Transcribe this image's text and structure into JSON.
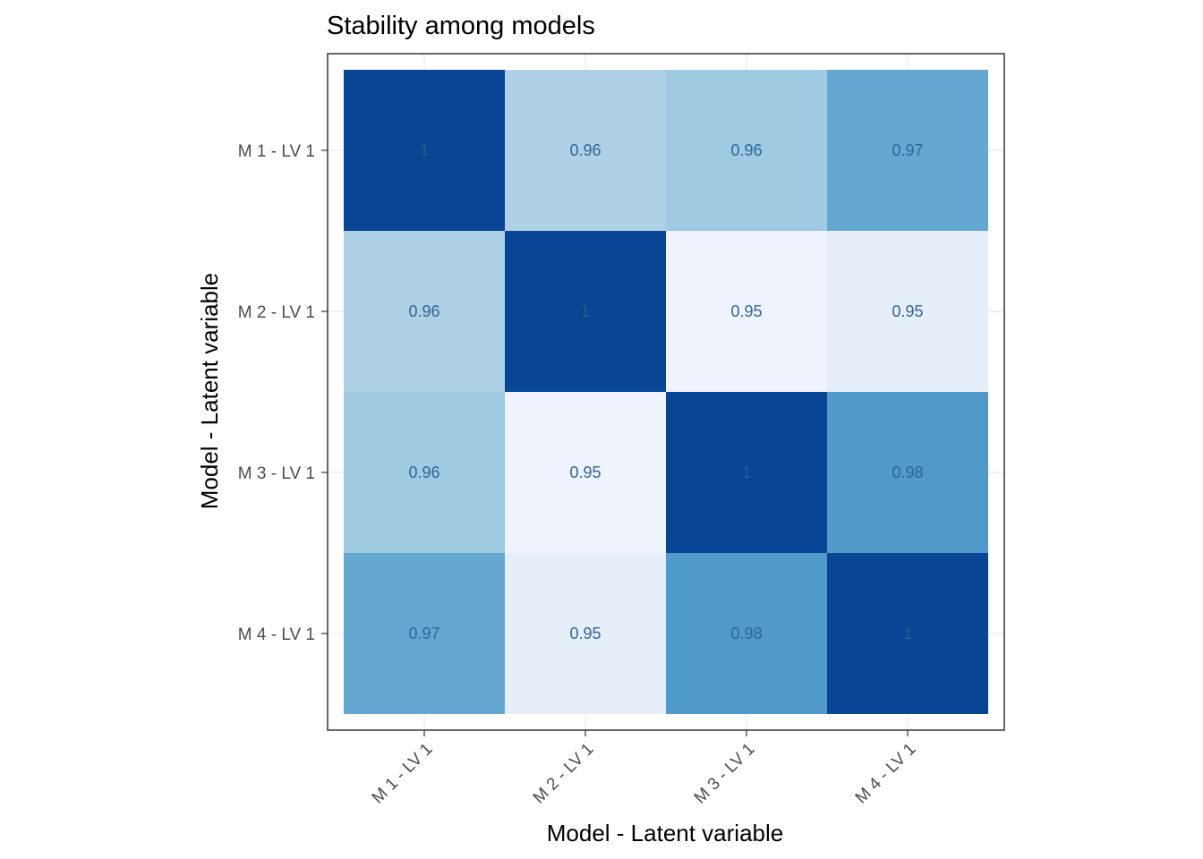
{
  "chart_data": {
    "type": "heatmap",
    "title": "Stability among models",
    "xlabel": "Model - Latent variable",
    "ylabel": "Model - Latent variable",
    "x_categories": [
      "M 1 - LV 1",
      "M 2 - LV 1",
      "M 3 - LV 1",
      "M 4 - LV 1"
    ],
    "y_categories": [
      "M 1 - LV 1",
      "M 2 - LV 1",
      "M 3 - LV 1",
      "M 4 - LV 1"
    ],
    "values": [
      [
        1,
        0.96,
        0.96,
        0.97
      ],
      [
        0.96,
        1,
        0.95,
        0.95
      ],
      [
        0.96,
        0.95,
        1,
        0.98
      ],
      [
        0.97,
        0.95,
        0.98,
        1
      ]
    ],
    "labels": [
      [
        "1",
        "0.96",
        "0.96",
        "0.97"
      ],
      [
        "0.96",
        "1",
        "0.95",
        "0.95"
      ],
      [
        "0.96",
        "0.95",
        "1",
        "0.98"
      ],
      [
        "0.97",
        "0.95",
        "0.98",
        "1"
      ]
    ],
    "cell_colors": [
      [
        "#084594",
        "#aed1e6",
        "#9fcae1",
        "#64a8d2"
      ],
      [
        "#aed1e6",
        "#084594",
        "#eef3fc",
        "#e6eefa"
      ],
      [
        "#9fcae1",
        "#eef3fc",
        "#084594",
        "#4f9ac9"
      ],
      [
        "#64a8d2",
        "#e6eefa",
        "#4f9ac9",
        "#084594"
      ]
    ],
    "label_color": "#2f6699",
    "label_color_dark": "#3a5f8a",
    "grid": true,
    "legend": "none",
    "theme": "bw"
  }
}
